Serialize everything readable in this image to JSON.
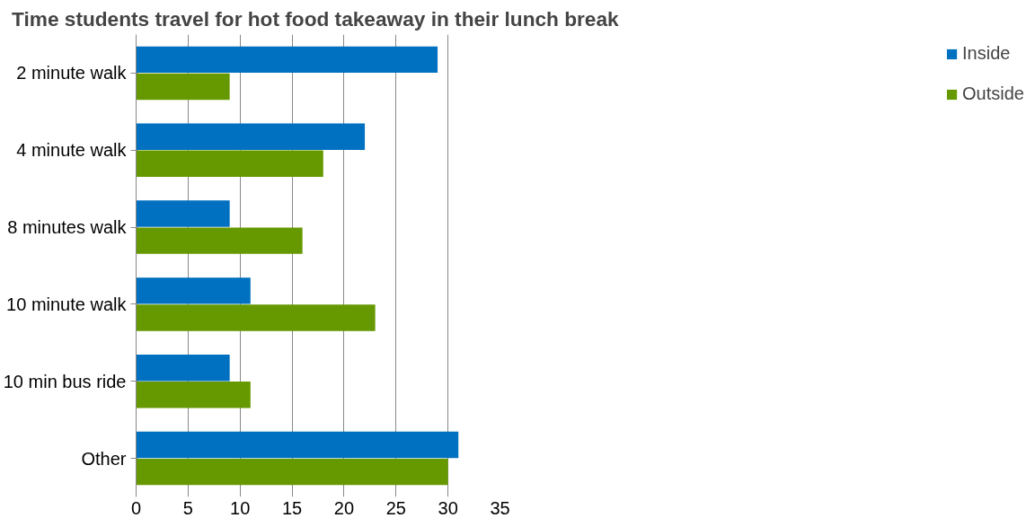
{
  "chart_data": {
    "type": "bar",
    "orientation": "horizontal",
    "title": "Time students  travel for hot food takeaway in their lunch break",
    "categories": [
      "2 minute walk",
      "4 minute walk",
      "8 minutes walk",
      "10 minute walk",
      "10 min bus ride",
      "Other"
    ],
    "series": [
      {
        "name": "Inside",
        "color": "#0070c0",
        "values": [
          29,
          22,
          9,
          11,
          9,
          31
        ]
      },
      {
        "name": "Outside",
        "color": "#669900",
        "values": [
          9,
          18,
          16,
          23,
          11,
          30
        ]
      }
    ],
    "xlim": [
      0,
      35
    ],
    "xticks": [
      0,
      5,
      10,
      15,
      20,
      25,
      30,
      35
    ],
    "grid": "x",
    "legend": "right"
  }
}
